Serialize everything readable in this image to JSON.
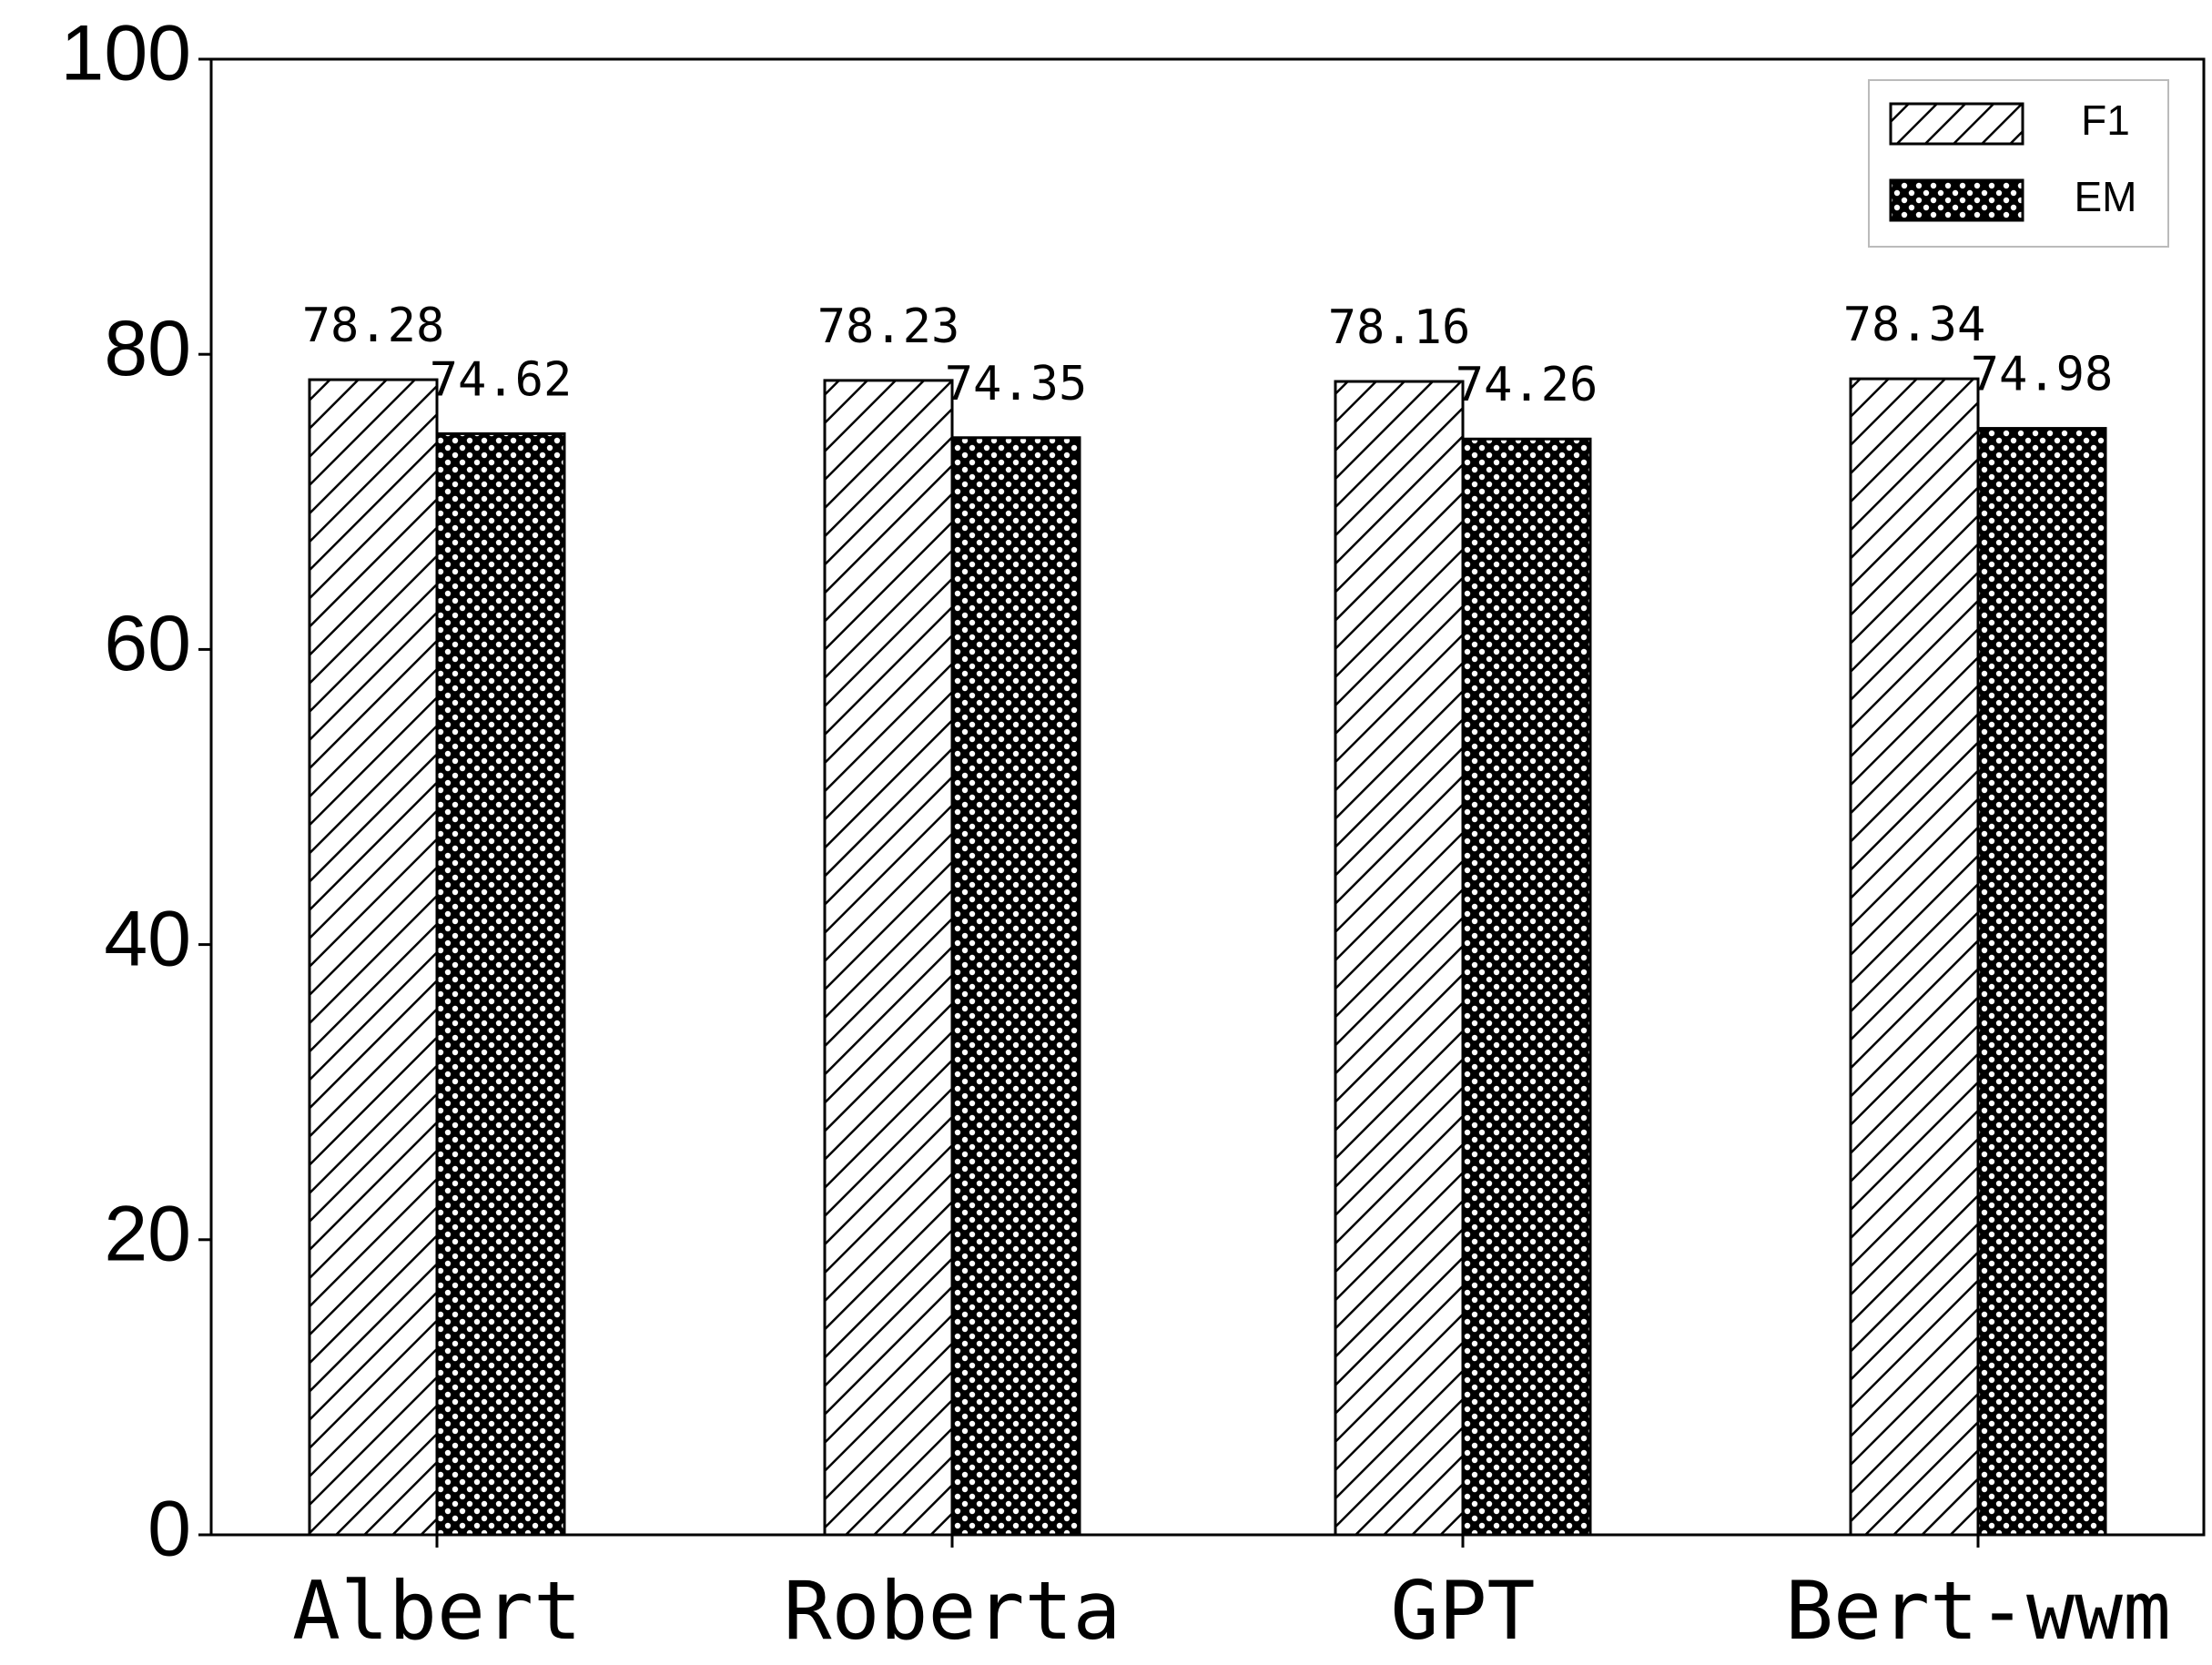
{
  "chart_data": {
    "type": "bar",
    "categories": [
      "Albert",
      "Roberta",
      "GPT",
      "Bert-wwm"
    ],
    "series": [
      {
        "name": "F1",
        "values": [
          78.28,
          78.23,
          78.16,
          78.34
        ]
      },
      {
        "name": "EM",
        "values": [
          74.62,
          74.35,
          74.26,
          74.98
        ]
      }
    ],
    "ylim": [
      0,
      100
    ],
    "yticks": [
      0,
      20,
      40,
      60,
      80,
      100
    ],
    "legend": "upper right"
  }
}
